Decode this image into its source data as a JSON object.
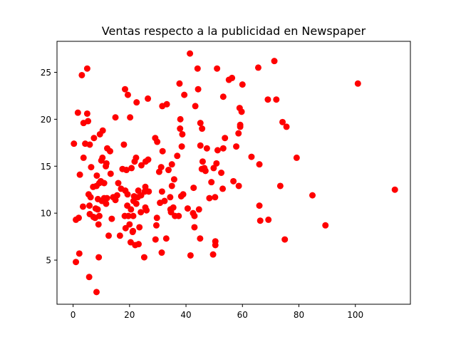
{
  "chart_data": {
    "type": "scatter",
    "title": "Ventas respecto a la publicidad en Newspaper",
    "xlabel": "",
    "ylabel": "",
    "xlim": [
      -5.7,
      119.5
    ],
    "ylim": [
      0.3,
      28.3
    ],
    "xticks": [
      0,
      20,
      40,
      60,
      80,
      100
    ],
    "yticks": [
      5,
      10,
      15,
      20,
      25
    ],
    "grid": false,
    "color": "#ff0000",
    "series": [
      {
        "points": [
          [
            0.3,
            17.4
          ],
          [
            1.0,
            9.3
          ],
          [
            1.0,
            4.8
          ],
          [
            1.7,
            20.7
          ],
          [
            2.0,
            9.5
          ],
          [
            2.2,
            5.7
          ],
          [
            2.4,
            14.1
          ],
          [
            3.1,
            24.7
          ],
          [
            3.5,
            10.7
          ],
          [
            3.7,
            15.9
          ],
          [
            3.7,
            19.6
          ],
          [
            4.3,
            17.4
          ],
          [
            5.0,
            25.4
          ],
          [
            5.0,
            20.6
          ],
          [
            5.3,
            19.8
          ],
          [
            5.5,
            12.0
          ],
          [
            5.7,
            3.2
          ],
          [
            5.8,
            10.8
          ],
          [
            5.9,
            17.3
          ],
          [
            5.9,
            9.9
          ],
          [
            6.2,
            11.7
          ],
          [
            6.4,
            14.9
          ],
          [
            7.1,
            12.8
          ],
          [
            7.2,
            9.6
          ],
          [
            7.4,
            18.0
          ],
          [
            7.8,
            9.5
          ],
          [
            8.0,
            10.5
          ],
          [
            8.3,
            1.6
          ],
          [
            8.3,
            12.9
          ],
          [
            8.4,
            14.0
          ],
          [
            8.7,
            10.4
          ],
          [
            8.8,
            11.5
          ],
          [
            9.0,
            8.8
          ],
          [
            9.1,
            5.3
          ],
          [
            9.3,
            9.7
          ],
          [
            9.3,
            13.2
          ],
          [
            9.5,
            18.4
          ],
          [
            9.8,
            13.4
          ],
          [
            10.0,
            15.6
          ],
          [
            10.2,
            11.3
          ],
          [
            10.4,
            15.9
          ],
          [
            10.5,
            18.8
          ],
          [
            11.0,
            13.2
          ],
          [
            11.0,
            11.6
          ],
          [
            11.6,
            15.0
          ],
          [
            11.7,
            11.0
          ],
          [
            11.8,
            15.3
          ],
          [
            12.0,
            11.6
          ],
          [
            12.1,
            16.9
          ],
          [
            12.6,
            7.6
          ],
          [
            13.1,
            16.6
          ],
          [
            13.3,
            14.2
          ],
          [
            13.7,
            9.4
          ],
          [
            14.2,
            11.7
          ],
          [
            15.0,
            11.4
          ],
          [
            15.0,
            20.2
          ],
          [
            15.6,
            11.9
          ],
          [
            16.0,
            13.2
          ],
          [
            16.6,
            7.6
          ],
          [
            17.0,
            12.6
          ],
          [
            17.5,
            14.7
          ],
          [
            18.0,
            17.3
          ],
          [
            18.3,
            9.7
          ],
          [
            18.4,
            23.2
          ],
          [
            18.5,
            12.4
          ],
          [
            18.6,
            8.4
          ],
          [
            18.9,
            14.6
          ],
          [
            19.2,
            10.8
          ],
          [
            19.3,
            12.0
          ],
          [
            19.4,
            22.6
          ],
          [
            19.6,
            9.7
          ],
          [
            20.0,
            8.8
          ],
          [
            20.2,
            20.2
          ],
          [
            20.4,
            6.9
          ],
          [
            20.5,
            10.4
          ],
          [
            20.7,
            14.8
          ],
          [
            21.1,
            8.0
          ],
          [
            21.2,
            8.1
          ],
          [
            21.3,
            9.7
          ],
          [
            21.4,
            11.3
          ],
          [
            21.6,
            11.8
          ],
          [
            21.8,
            15.5
          ],
          [
            22.0,
            6.6
          ],
          [
            22.3,
            15.9
          ],
          [
            22.4,
            11.0
          ],
          [
            22.5,
            21.8
          ],
          [
            22.9,
            11.7
          ],
          [
            23.1,
            12.4
          ],
          [
            23.2,
            6.7
          ],
          [
            23.5,
            8.5
          ],
          [
            24.0,
            10.1
          ],
          [
            24.1,
            11.9
          ],
          [
            24.2,
            15.1
          ],
          [
            25.2,
            5.3
          ],
          [
            25.4,
            12.3
          ],
          [
            25.6,
            10.6
          ],
          [
            25.6,
            12.8
          ],
          [
            25.7,
            15.5
          ],
          [
            26.0,
            10.3
          ],
          [
            26.5,
            22.2
          ],
          [
            26.6,
            15.7
          ],
          [
            26.8,
            12.3
          ],
          [
            29.1,
            18.0
          ],
          [
            29.2,
            7.2
          ],
          [
            29.5,
            8.7
          ],
          [
            29.7,
            9.5
          ],
          [
            29.8,
            17.6
          ],
          [
            30.5,
            14.4
          ],
          [
            30.8,
            11.1
          ],
          [
            31.2,
            14.9
          ],
          [
            31.4,
            5.8
          ],
          [
            31.5,
            12.3
          ],
          [
            31.6,
            21.4
          ],
          [
            31.7,
            16.6
          ],
          [
            32.4,
            11.3
          ],
          [
            33.0,
            7.3
          ],
          [
            33.2,
            21.6
          ],
          [
            33.8,
            14.6
          ],
          [
            34.4,
            11.7
          ],
          [
            34.5,
            10.4
          ],
          [
            34.7,
            10.1
          ],
          [
            35.0,
            15.2
          ],
          [
            35.0,
            12.9
          ],
          [
            35.5,
            10.6
          ],
          [
            35.8,
            13.6
          ],
          [
            36.1,
            9.7
          ],
          [
            36.9,
            16.1
          ],
          [
            37.4,
            9.7
          ],
          [
            37.7,
            23.8
          ],
          [
            37.9,
            19.0
          ],
          [
            38.0,
            20.0
          ],
          [
            38.3,
            11.8
          ],
          [
            38.5,
            17.1
          ],
          [
            38.7,
            18.4
          ],
          [
            39.0,
            12.0
          ],
          [
            39.4,
            22.6
          ],
          [
            40.6,
            10.5
          ],
          [
            41.4,
            27.0
          ],
          [
            41.6,
            5.5
          ],
          [
            42.5,
            10.0
          ],
          [
            42.7,
            12.7
          ],
          [
            43.0,
            9.7
          ],
          [
            43.0,
            8.5
          ],
          [
            43.3,
            21.4
          ],
          [
            44.1,
            25.4
          ],
          [
            44.3,
            23.2
          ],
          [
            44.6,
            10.4
          ],
          [
            45.0,
            7.3
          ],
          [
            45.1,
            19.6
          ],
          [
            45.1,
            17.2
          ],
          [
            45.6,
            14.7
          ],
          [
            45.7,
            19.0
          ],
          [
            45.9,
            15.5
          ],
          [
            46.5,
            14.8
          ],
          [
            46.9,
            14.5
          ],
          [
            47.4,
            16.9
          ],
          [
            48.3,
            11.6
          ],
          [
            49.0,
            13.3
          ],
          [
            49.6,
            5.6
          ],
          [
            49.8,
            14.8
          ],
          [
            50.3,
            11.7
          ],
          [
            50.4,
            7.0
          ],
          [
            50.4,
            6.6
          ],
          [
            50.8,
            15.3
          ],
          [
            51.0,
            25.4
          ],
          [
            51.2,
            16.7
          ],
          [
            52.5,
            14.3
          ],
          [
            53.0,
            12.6
          ],
          [
            53.2,
            22.4
          ],
          [
            53.2,
            16.9
          ],
          [
            53.8,
            18.0
          ],
          [
            55.2,
            24.2
          ],
          [
            56.3,
            24.4
          ],
          [
            56.8,
            13.4
          ],
          [
            57.8,
            17.1
          ],
          [
            58.6,
            18.5
          ],
          [
            58.7,
            12.9
          ],
          [
            59.0,
            21.2
          ],
          [
            59.2,
            19.2
          ],
          [
            59.2,
            19.4
          ],
          [
            59.7,
            20.8
          ],
          [
            60.0,
            23.7
          ],
          [
            63.2,
            16.0
          ],
          [
            65.6,
            25.5
          ],
          [
            66.0,
            15.2
          ],
          [
            66.0,
            10.8
          ],
          [
            66.3,
            9.2
          ],
          [
            69.0,
            22.1
          ],
          [
            69.2,
            9.3
          ],
          [
            71.3,
            26.2
          ],
          [
            72.0,
            22.1
          ],
          [
            73.4,
            12.9
          ],
          [
            74.2,
            19.7
          ],
          [
            75.0,
            7.2
          ],
          [
            75.6,
            19.2
          ],
          [
            79.2,
            15.9
          ],
          [
            84.8,
            11.9
          ],
          [
            89.4,
            8.7
          ],
          [
            100.9,
            23.8
          ],
          [
            114.0,
            12.5
          ]
        ]
      }
    ]
  }
}
